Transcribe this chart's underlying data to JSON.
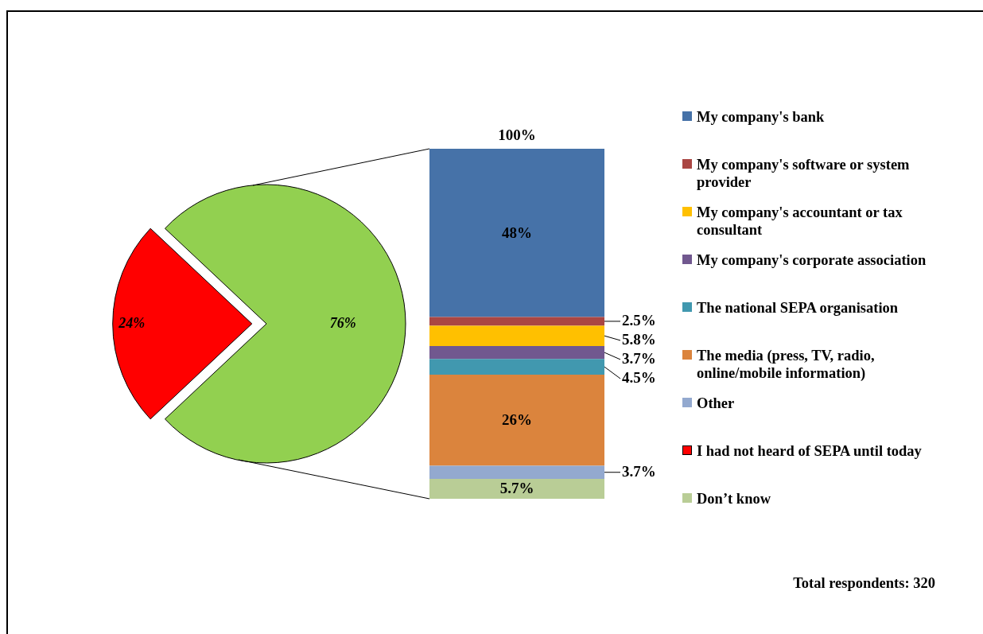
{
  "chart_data": [
    {
      "type": "pie",
      "categories": [
        "I had not heard of SEPA until today",
        null
      ],
      "values": [
        24,
        76
      ],
      "colors": [
        "#ff0000",
        "#92d050"
      ],
      "value_labels": [
        "24%",
        "76%"
      ],
      "legend": "right"
    },
    {
      "type": "bar",
      "stacked": true,
      "categories": [
        null
      ],
      "legend": "right",
      "totals": [
        "100%"
      ],
      "annotations": [
        "Total respondents: 320"
      ],
      "series": [
        {
          "name": "Don’t know",
          "color": "#b9cd96",
          "values": [
            5.7
          ],
          "value_labels": [
            "5.7%"
          ]
        },
        {
          "name": "Other",
          "color": "#93a9cf",
          "values": [
            3.7
          ],
          "value_labels": [
            "3.7%"
          ]
        },
        {
          "name": "The media (press, TV, radio, online/mobile information)",
          "color": "#db843d",
          "values": [
            26
          ],
          "value_labels": [
            "26%"
          ]
        },
        {
          "name": "The national SEPA organisation",
          "color": "#4198af",
          "values": [
            4.5
          ],
          "value_labels": [
            "4.5%"
          ]
        },
        {
          "name": "My company's corporate association",
          "color": "#71588f",
          "values": [
            3.7
          ],
          "value_labels": [
            "3.7%"
          ]
        },
        {
          "name": "My company's accountant or tax consultant",
          "color": "#ffc000",
          "values": [
            5.8
          ],
          "value_labels": [
            "5.8%"
          ]
        },
        {
          "name": "My company's software or system provider",
          "color": "#aa4643",
          "values": [
            2.5
          ],
          "value_labels": [
            "2.5%"
          ]
        },
        {
          "name": "My company's bank",
          "color": "#4672a8",
          "values": [
            48
          ],
          "value_labels": [
            "48%"
          ]
        }
      ]
    }
  ]
}
